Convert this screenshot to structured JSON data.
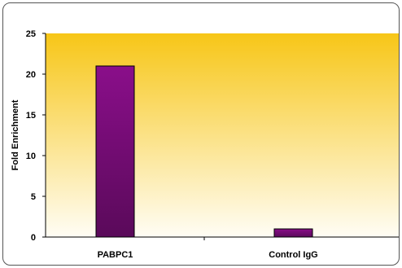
{
  "chart_data": {
    "type": "bar",
    "title": "",
    "xlabel": "",
    "ylabel": "Fold Enrichment",
    "categories": [
      "PABPC1",
      "Control IgG"
    ],
    "values": [
      21,
      1
    ],
    "ylim": [
      0,
      25
    ],
    "yticks": [
      0,
      5,
      10,
      15,
      20,
      25
    ],
    "grid": false,
    "legend": "none",
    "colors": {
      "bar_top": "#8a0e8a",
      "bar_bottom": "#5a0a5a",
      "plot_bg_top": "#f7c617",
      "plot_bg_bottom": "#fffdf5",
      "axis": "#000000",
      "frame": "#555555"
    }
  }
}
